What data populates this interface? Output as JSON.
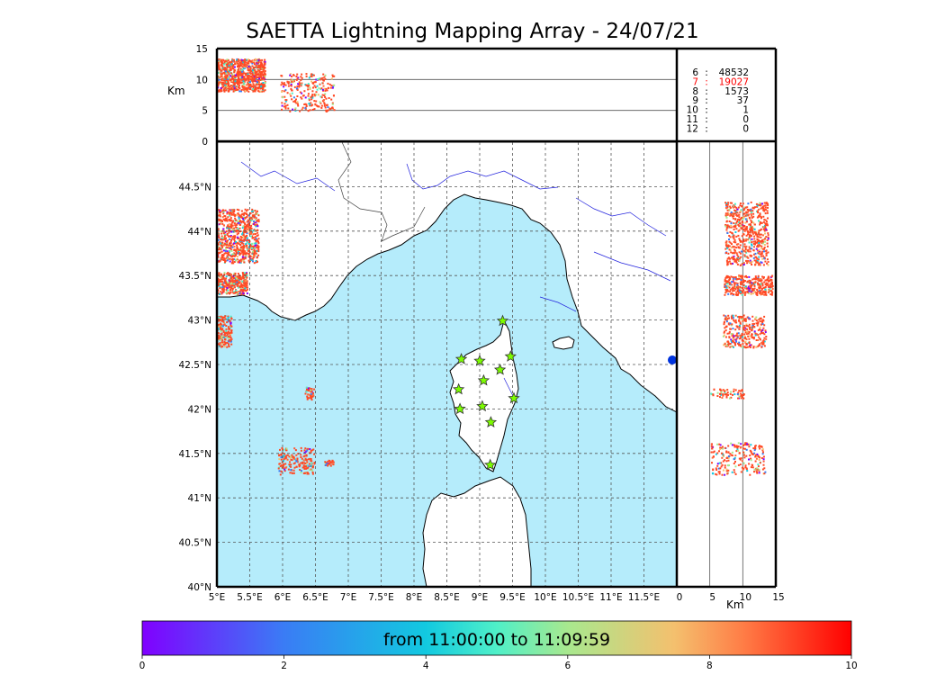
{
  "title": "SAETTA Lightning Mapping Array - 24/07/21",
  "colorbar": {
    "label": "from 11:00:00 to 11:09:59",
    "ticks": [
      "0",
      "2",
      "4",
      "6",
      "8",
      "10"
    ],
    "range": [
      0,
      10
    ]
  },
  "colors": {
    "sea": "#b5ecfb",
    "land": "#ffffff",
    "rivers": "#2222dd",
    "station": "#7cfc00",
    "highlight_count": "#ff0000"
  },
  "chart_data": [
    {
      "type": "scatter",
      "panel": "altitude-vs-longitude",
      "ylabel": "Km",
      "ylim": [
        0,
        15
      ],
      "yticks": [
        "0",
        "5",
        "10",
        "15"
      ],
      "horizontal_grid": [
        5,
        10
      ]
    },
    {
      "type": "scatter",
      "panel": "map",
      "xlim": [
        5.0,
        12.0
      ],
      "ylim": [
        40.0,
        45.0
      ],
      "xticks": [
        "5°E",
        "5.5°E",
        "6°E",
        "6.5°E",
        "7°E",
        "7.5°E",
        "8°E",
        "8.5°E",
        "9°E",
        "9.5°E",
        "10°E",
        "10.5°E",
        "11°E",
        "11.5°E"
      ],
      "yticks": [
        "40°N",
        "40.5°N",
        "41°N",
        "41.5°N",
        "42°N",
        "42.5°N",
        "43°N",
        "43.5°N",
        "44°N",
        "44.5°N"
      ],
      "grid": true,
      "stations": [
        {
          "lon": 9.35,
          "lat": 42.99
        },
        {
          "lon": 8.72,
          "lat": 42.56
        },
        {
          "lon": 9.0,
          "lat": 42.54
        },
        {
          "lon": 9.47,
          "lat": 42.59
        },
        {
          "lon": 9.31,
          "lat": 42.44
        },
        {
          "lon": 9.06,
          "lat": 42.32
        },
        {
          "lon": 8.68,
          "lat": 42.22
        },
        {
          "lon": 9.52,
          "lat": 42.12
        },
        {
          "lon": 8.7,
          "lat": 42.0
        },
        {
          "lon": 9.04,
          "lat": 42.03
        },
        {
          "lon": 9.17,
          "lat": 41.85
        },
        {
          "lon": 9.16,
          "lat": 41.37
        }
      ]
    },
    {
      "type": "scatter",
      "panel": "latitude-vs-altitude",
      "xlabel": "Km",
      "xlim": [
        0,
        15
      ],
      "xticks": [
        "0",
        "5",
        "10",
        "15"
      ],
      "vertical_grid": [
        5,
        10
      ]
    },
    {
      "type": "table",
      "panel": "station-count",
      "rows": [
        {
          "stations": "6",
          "sep": ":",
          "count": "48532",
          "highlight": false
        },
        {
          "stations": "7",
          "sep": ":",
          "count": "19027",
          "highlight": true
        },
        {
          "stations": "8",
          "sep": ":",
          "count": "1573",
          "highlight": false
        },
        {
          "stations": "9",
          "sep": ":",
          "count": "37",
          "highlight": false
        },
        {
          "stations": "10",
          "sep": ":",
          "count": "1",
          "highlight": false
        },
        {
          "stations": "11",
          "sep": ":",
          "count": "0",
          "highlight": false
        },
        {
          "stations": "12",
          "sep": ":",
          "count": "0",
          "highlight": false
        }
      ]
    }
  ]
}
